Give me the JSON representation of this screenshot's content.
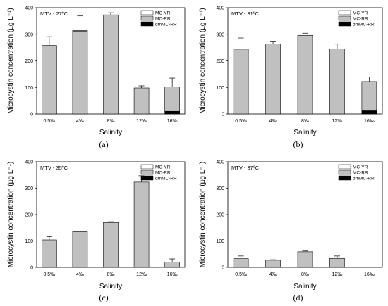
{
  "colors": {
    "MC-YR": "#ffffff",
    "MC-RR": "#c0c0c0",
    "dmMC-RR": "#000000"
  },
  "chart_data": [
    {
      "type": "bar",
      "stacked": true,
      "panel_label": "(a)",
      "condition": "MTV - 27ºC",
      "xlabel": "Salinity",
      "ylabel": "Microcystin concentration (µg L⁻¹)",
      "categories": [
        "0.5‰",
        "4‰",
        "8‰",
        "12‰",
        "16‰"
      ],
      "ylim": [
        0,
        400
      ],
      "yticks": [
        0,
        100,
        200,
        300,
        400
      ],
      "legend": [
        "MC-YR",
        "MC-RR",
        "dmMC-RR"
      ],
      "series": [
        {
          "name": "dmMC-RR",
          "values": [
            0,
            0,
            0,
            0,
            10
          ]
        },
        {
          "name": "MC-RR",
          "values": [
            258,
            312,
            373,
            98,
            92
          ]
        },
        {
          "name": "MC-YR",
          "values": [
            0,
            2,
            0,
            0,
            0
          ]
        }
      ],
      "errors": [
        33,
        55,
        8,
        8,
        33
      ]
    },
    {
      "type": "bar",
      "stacked": true,
      "panel_label": "(b)",
      "condition": "MTV - 31ºC",
      "xlabel": "Salinity",
      "ylabel": "Microcystin concentration (µg L⁻¹)",
      "categories": [
        "0.5‰",
        "4‰",
        "8‰",
        "12‰",
        "16‰"
      ],
      "ylim": [
        0,
        400
      ],
      "yticks": [
        0,
        100,
        200,
        300,
        400
      ],
      "legend": [
        "MC-YR",
        "MC-RR",
        "dmMC-RR"
      ],
      "series": [
        {
          "name": "dmMC-RR",
          "values": [
            0,
            0,
            0,
            0,
            12
          ]
        },
        {
          "name": "MC-RR",
          "values": [
            244,
            264,
            296,
            245,
            110
          ]
        },
        {
          "name": "MC-YR",
          "values": [
            0,
            0,
            0,
            0,
            0
          ]
        }
      ],
      "errors": [
        42,
        10,
        8,
        18,
        17
      ]
    },
    {
      "type": "bar",
      "stacked": true,
      "panel_label": "(c)",
      "condition": "MTV - 35ºC",
      "xlabel": "Salinity",
      "ylabel": "Microcystin concentration (µg L⁻¹)",
      "categories": [
        "0.5‰",
        "4‰",
        "8‰",
        "12‰",
        "16‰"
      ],
      "ylim": [
        0,
        400
      ],
      "yticks": [
        0,
        100,
        200,
        300,
        400
      ],
      "legend": [
        "MC-YR",
        "MC-RR",
        "dmMC-RR"
      ],
      "series": [
        {
          "name": "dmMC-RR",
          "values": [
            0,
            0,
            0,
            0,
            0
          ]
        },
        {
          "name": "MC-RR",
          "values": [
            104,
            135,
            170,
            323,
            20
          ]
        },
        {
          "name": "MC-YR",
          "values": [
            0,
            0,
            0,
            0,
            0
          ]
        }
      ],
      "errors": [
        12,
        10,
        3,
        24,
        12
      ]
    },
    {
      "type": "bar",
      "stacked": true,
      "panel_label": "(d)",
      "condition": "MTV - 37ºC",
      "xlabel": "Salinity",
      "ylabel": "Microcystin concentration (µg L⁻¹)",
      "categories": [
        "0.5‰",
        "4‰",
        "8‰",
        "12‰",
        "16‰"
      ],
      "ylim": [
        0,
        400
      ],
      "yticks": [
        0,
        100,
        200,
        300,
        400
      ],
      "legend": [
        "MC-YR",
        "MC-RR",
        "dmMC-RR"
      ],
      "series": [
        {
          "name": "dmMC-RR",
          "values": [
            0,
            0,
            0,
            0,
            0
          ]
        },
        {
          "name": "MC-RR",
          "values": [
            33,
            27,
            59,
            34,
            0
          ]
        },
        {
          "name": "MC-YR",
          "values": [
            0,
            0,
            0,
            0,
            0
          ]
        }
      ],
      "errors": [
        10,
        2,
        3,
        9,
        0
      ]
    }
  ]
}
